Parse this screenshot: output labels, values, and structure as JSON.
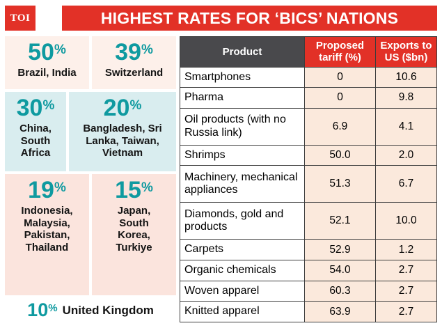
{
  "logo": {
    "text": "TOI"
  },
  "header": {
    "title": "HIGHEST RATES FOR ‘BICS’ NATIONS"
  },
  "rates": [
    {
      "value": "50",
      "unit": "%",
      "countries": "Brazil, India"
    },
    {
      "value": "39",
      "unit": "%",
      "countries": "Switzerland"
    },
    {
      "value": "30",
      "unit": "%",
      "countries": "China,\nSouth\nAfrica"
    },
    {
      "value": "20",
      "unit": "%",
      "countries": "Bangladesh, Sri\nLanka, Taiwan,\nVietnam"
    },
    {
      "value": "19",
      "unit": "%",
      "countries": "Indonesia,\nMalaysia,\nPakistan,\nThailand"
    },
    {
      "value": "15",
      "unit": "%",
      "countries": "Japan,\nSouth\nKorea,\nTurkiye"
    },
    {
      "value": "10",
      "unit": "%",
      "countries": "United Kingdom"
    }
  ],
  "table": {
    "headers": {
      "product": "Product",
      "tariff": "Proposed tariff (%)",
      "exports": "Exports to US ($bn)"
    },
    "rows": [
      {
        "product": "Smartphones",
        "tariff": "0",
        "exports": "10.6"
      },
      {
        "product": "Pharma",
        "tariff": "0",
        "exports": "9.8"
      },
      {
        "product": "Oil products (with no Russia link)",
        "tariff": "6.9",
        "exports": "4.1"
      },
      {
        "product": "Shrimps",
        "tariff": "50.0",
        "exports": "2.0"
      },
      {
        "product": "Machinery, mechanical appliances",
        "tariff": "51.3",
        "exports": "6.7"
      },
      {
        "product": "Diamonds, gold and products",
        "tariff": "52.1",
        "exports": "10.0"
      },
      {
        "product": "Carpets",
        "tariff": "52.9",
        "exports": "1.2"
      },
      {
        "product": "Organic chemicals",
        "tariff": "54.0",
        "exports": "2.7"
      },
      {
        "product": "Woven apparel",
        "tariff": "60.3",
        "exports": "2.7"
      },
      {
        "product": "Knitted apparel",
        "tariff": "63.9",
        "exports": "2.7"
      }
    ]
  },
  "colors": {
    "red": "#e23127",
    "teal": "#0f9aa0",
    "dark_header": "#49494c",
    "numeric_cell_bg": "#fbe9dc",
    "cyan_box": "#d9edef",
    "pink_box": "#fbe4dd"
  },
  "chart_data": [
    {
      "type": "table",
      "title": "Highest rates for 'BICS' nations — proposed US tariff rate by country (%)",
      "categories": [
        "Brazil, India",
        "Switzerland",
        "China, South Africa",
        "Bangladesh, Sri Lanka, Taiwan, Vietnam",
        "Indonesia, Malaysia, Pakistan, Thailand",
        "Japan, South Korea, Turkiye",
        "United Kingdom"
      ],
      "values": [
        50,
        39,
        30,
        20,
        19,
        15,
        10
      ]
    },
    {
      "type": "table",
      "title": "Product tariffs and exports",
      "columns": [
        "Product",
        "Proposed tariff (%)",
        "Exports to US ($bn)"
      ],
      "rows": [
        [
          "Smartphones",
          0,
          10.6
        ],
        [
          "Pharma",
          0,
          9.8
        ],
        [
          "Oil products (with no Russia link)",
          6.9,
          4.1
        ],
        [
          "Shrimps",
          50.0,
          2.0
        ],
        [
          "Machinery, mechanical appliances",
          51.3,
          6.7
        ],
        [
          "Diamonds, gold and products",
          52.1,
          10.0
        ],
        [
          "Carpets",
          52.9,
          1.2
        ],
        [
          "Organic chemicals",
          54.0,
          2.7
        ],
        [
          "Woven apparel",
          60.3,
          2.7
        ],
        [
          "Knitted apparel",
          63.9,
          2.7
        ]
      ]
    }
  ]
}
